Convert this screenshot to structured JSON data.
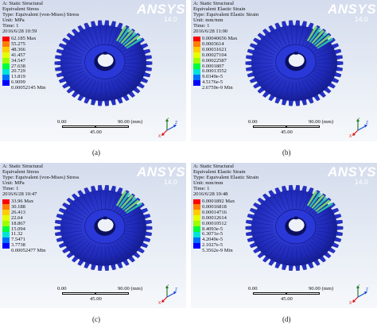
{
  "logo": {
    "brand": "ANSYS",
    "version": "14.0"
  },
  "colors": {
    "legend": [
      "#ff0000",
      "#ff7f00",
      "#ffcc00",
      "#e5ff00",
      "#9cff00",
      "#00ff3a",
      "#00e3d9",
      "#0070ff",
      "#0000ff"
    ],
    "gear_body": "#1f2ab8",
    "hotspot": "#2fc9a6"
  },
  "panels": [
    {
      "header": [
        "A: Static Structural",
        "Equivalent Stress",
        "Type: Equivalent (von-Mises) Stress",
        "Unit: MPa",
        "Time: 1",
        "2016/6/28 10:59"
      ],
      "legend": [
        "62.185 Max",
        "55.275",
        "48.366",
        "41.457",
        "34.547",
        "27.638",
        "20.729",
        "13.819",
        "6.9099",
        "0.00052145 Min"
      ],
      "scale": {
        "left": "0.00",
        "right": "90.00 (mm)",
        "mid": "45.00"
      },
      "caption": "(a)"
    },
    {
      "header": [
        "A: Static Structural",
        "Equivalent Elastic Strain",
        "Type: Equivalent Elastic Strain",
        "Unit: mm/mm",
        "Time: 1",
        "2016/6/28 11:00"
      ],
      "legend": [
        "0.00040656 Max",
        "0.0003614",
        "0.00031621",
        "0.00027104",
        "0.00022587",
        "0.0001807",
        "0.00013552",
        "9.0349e-5",
        "4.5176e-5",
        "2.6759e-9 Min"
      ],
      "scale": {
        "left": "0.00",
        "right": "90.00 (mm)",
        "mid": "45.00"
      },
      "caption": "(b)"
    },
    {
      "header": [
        "A: Static Structural",
        "Equivalent Stress",
        "Type: Equivalent (von-Mises) Stress",
        "Unit: MPa",
        "Time: 1",
        "2016/6/28 10:47"
      ],
      "legend": [
        "33.96 Max",
        "30.188",
        "26.413",
        "22.64",
        "18.867",
        "15.094",
        "11.32",
        "7.5471",
        "3.7738",
        "0.00052477 Min"
      ],
      "scale": {
        "left": "0.00",
        "right": "90.00 (mm)",
        "mid": "45.00"
      },
      "caption": "(c)"
    },
    {
      "header": [
        "A: Static Structural",
        "Equivalent Elastic Strain",
        "Type: Equivalent Elastic Strain",
        "Unit: mm/mm",
        "Time: 1",
        "2016/6/28 10:48"
      ],
      "legend": [
        "0.0001892 Max",
        "0.00016818",
        "0.00014716",
        "0.00012614",
        "0.00010512",
        "8.4093e-5",
        "6.3071e-5",
        "4.2049e-5",
        "2.1027e-5",
        "5.3562e-9 Min"
      ],
      "scale": {
        "left": "0.00",
        "right": "90.00 (mm)",
        "mid": "45.00"
      },
      "caption": "(d)"
    }
  ]
}
